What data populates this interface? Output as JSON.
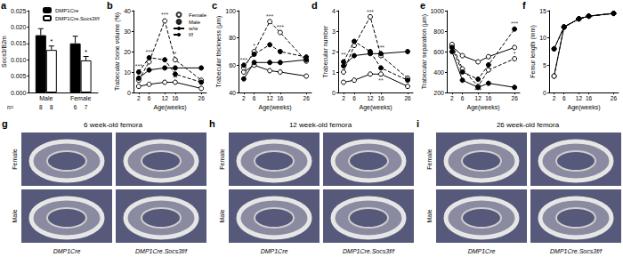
{
  "chart_data": [
    {
      "panel": "a",
      "type": "bar",
      "y_label": "Socs3/B2m",
      "categories": [
        "Male",
        "Female"
      ],
      "n_label": "n=",
      "legend": "upper right",
      "ylim": [
        0,
        0.025
      ],
      "yticks": [
        {
          "value": 0,
          "label": "0.000"
        },
        0.005,
        {
          "value": 0.01,
          "label": "0.010"
        },
        0.015,
        {
          "value": 0.02,
          "label": "0.020"
        },
        0.025
      ],
      "series": [
        {
          "name": "DMP1Cre",
          "color": "#000000",
          "values": [
            0.0175,
            0.015
          ],
          "errors": [
            0.002,
            0.0022
          ],
          "n": [
            8,
            6
          ]
        },
        {
          "name": "DMP1Cre.Socs3f/f",
          "color": "#ffffff",
          "values": [
            0.013,
            0.0098
          ],
          "errors": [
            0.0012,
            0.0012
          ],
          "n": [
            8,
            7
          ],
          "significance": [
            "*",
            "*"
          ]
        }
      ]
    },
    {
      "panel": "b",
      "type": "line",
      "y_label": "Trabecular bone volume (%)",
      "x_label": "Age(weeks)",
      "x": [
        2,
        6,
        12,
        16,
        26
      ],
      "xlim": [
        0,
        28
      ],
      "xticks": [
        2,
        6,
        12,
        16,
        26
      ],
      "ylim": [
        0,
        40
      ],
      "yticks": [
        0,
        10,
        20,
        30,
        40
      ],
      "legend": "upper right",
      "legend_entries": [
        {
          "label": "Female",
          "marker": "open-circle"
        },
        {
          "label": "Male",
          "marker": "circle"
        },
        {
          "label": "w/w",
          "line_style": "solid"
        },
        {
          "label": "f/f",
          "line_style": "dashed"
        }
      ],
      "series": [
        {
          "sex": "Female",
          "genotype": "w/w",
          "color": "#000000",
          "marker": "open-circle",
          "line_style": "solid",
          "values": [
            3,
            4,
            5,
            5,
            2
          ]
        },
        {
          "sex": "Female",
          "genotype": "f/f",
          "color": "#000000",
          "marker": "open-circle",
          "line_style": "dashed",
          "values": [
            6,
            15,
            35,
            16,
            6
          ]
        },
        {
          "sex": "Male",
          "genotype": "w/w",
          "color": "#000000",
          "marker": "circle",
          "line_style": "solid",
          "values": [
            7,
            11,
            12,
            12,
            12
          ]
        },
        {
          "sex": "Male",
          "genotype": "f/f",
          "color": "#000000",
          "marker": "circle",
          "line_style": "dashed",
          "values": [
            10,
            17,
            16,
            9,
            5
          ]
        }
      ],
      "annotations": [
        {
          "x": 2,
          "y": 13,
          "text": "***"
        },
        {
          "x": 6,
          "y": 20,
          "text": "***"
        },
        {
          "x": 12,
          "y": 38,
          "text": "***"
        },
        {
          "x": 16,
          "y": 19,
          "text": "*"
        },
        {
          "x": 16,
          "y": 7,
          "text": "**"
        }
      ]
    },
    {
      "panel": "c",
      "type": "line",
      "y_label": "Trabecular thickness (μm)",
      "x_label": "Age(weeks)",
      "x": [
        2,
        6,
        12,
        16,
        26
      ],
      "xlim": [
        0,
        28
      ],
      "xticks": [
        2,
        6,
        12,
        16,
        26
      ],
      "ylim": [
        40,
        100
      ],
      "yticks": [
        40,
        60,
        80,
        100
      ],
      "series": [
        {
          "sex": "Female",
          "genotype": "w/w",
          "color": "#000000",
          "marker": "open-circle",
          "line_style": "solid",
          "values": [
            55,
            60,
            56,
            55,
            52
          ]
        },
        {
          "sex": "Female",
          "genotype": "f/f",
          "color": "#000000",
          "marker": "open-circle",
          "line_style": "dashed",
          "values": [
            58,
            70,
            92,
            84,
            63
          ]
        },
        {
          "sex": "Male",
          "genotype": "w/w",
          "color": "#000000",
          "marker": "circle",
          "line_style": "solid",
          "values": [
            50,
            62,
            62,
            62,
            64
          ]
        },
        {
          "sex": "Male",
          "genotype": "f/f",
          "color": "#000000",
          "marker": "circle",
          "line_style": "dashed",
          "values": [
            60,
            68,
            75,
            70,
            66
          ]
        }
      ],
      "annotations": [
        {
          "x": 2,
          "y": 64,
          "text": "***"
        },
        {
          "x": 6,
          "y": 74,
          "text": "*"
        },
        {
          "x": 12,
          "y": 96,
          "text": "***"
        },
        {
          "x": 16,
          "y": 88,
          "text": "***"
        }
      ]
    },
    {
      "panel": "d",
      "type": "line",
      "y_label": "Trabecular number",
      "x_label": "Age(weeks)",
      "x": [
        2,
        6,
        12,
        16,
        26
      ],
      "xlim": [
        0,
        28
      ],
      "xticks": [
        2,
        6,
        12,
        16,
        26
      ],
      "ylim": [
        0,
        4
      ],
      "yticks": [
        0,
        1,
        2,
        3,
        4
      ],
      "series": [
        {
          "sex": "Female",
          "genotype": "w/w",
          "color": "#000000",
          "marker": "open-circle",
          "line_style": "solid",
          "values": [
            0.5,
            0.6,
            0.9,
            0.9,
            0.3
          ]
        },
        {
          "sex": "Female",
          "genotype": "f/f",
          "color": "#000000",
          "marker": "open-circle",
          "line_style": "dashed",
          "values": [
            1.0,
            2.3,
            3.7,
            1.8,
            0.7
          ]
        },
        {
          "sex": "Male",
          "genotype": "w/w",
          "color": "#000000",
          "marker": "circle",
          "line_style": "solid",
          "values": [
            1.3,
            1.8,
            1.9,
            1.9,
            2.0
          ]
        },
        {
          "sex": "Male",
          "genotype": "f/f",
          "color": "#000000",
          "marker": "circle",
          "line_style": "dashed",
          "values": [
            1.5,
            2.5,
            2.0,
            1.2,
            0.6
          ]
        }
      ],
      "annotations": [
        {
          "x": 2,
          "y": 1.85,
          "text": "**"
        },
        {
          "x": 12,
          "y": 3.95,
          "text": "***"
        },
        {
          "x": 16,
          "y": 2.2,
          "text": "***"
        },
        {
          "x": 16,
          "y": 0.6,
          "text": "**"
        }
      ]
    },
    {
      "panel": "e",
      "type": "line",
      "y_label": "Trabecular separation (μm)",
      "x_label": "Age(weeks)",
      "x": [
        2,
        6,
        12,
        16,
        26
      ],
      "xlim": [
        0,
        28
      ],
      "xticks": [
        2,
        6,
        12,
        16,
        26
      ],
      "ylim": [
        200,
        1000
      ],
      "yticks": [
        200,
        400,
        600,
        800,
        1000
      ],
      "series": [
        {
          "sex": "Female",
          "genotype": "w/w",
          "color": "#000000",
          "marker": "open-circle",
          "line_style": "solid",
          "values": [
            650,
            560,
            500,
            550,
            640
          ]
        },
        {
          "sex": "Female",
          "genotype": "f/f",
          "color": "#000000",
          "marker": "open-circle",
          "line_style": "dashed",
          "values": [
            670,
            430,
            260,
            420,
            530
          ]
        },
        {
          "sex": "Male",
          "genotype": "w/w",
          "color": "#000000",
          "marker": "circle",
          "line_style": "solid",
          "values": [
            600,
            320,
            250,
            290,
            250
          ]
        },
        {
          "sex": "Male",
          "genotype": "f/f",
          "color": "#000000",
          "marker": "circle",
          "line_style": "dashed",
          "values": [
            640,
            400,
            330,
            470,
            820
          ]
        }
      ],
      "annotations": [
        {
          "x": 12,
          "y": 225,
          "text": "***"
        },
        {
          "x": 16,
          "y": 530,
          "text": "**"
        },
        {
          "x": 26,
          "y": 870,
          "text": "***"
        },
        {
          "x": 26,
          "y": 580,
          "text": "*"
        }
      ]
    },
    {
      "panel": "f",
      "type": "line",
      "y_label": "Femur length (mm)",
      "x_label": "Age(weeks)",
      "x": [
        2,
        6,
        12,
        16,
        26
      ],
      "xlim": [
        0,
        28
      ],
      "xticks": [
        2,
        6,
        12,
        16,
        26
      ],
      "ylim": [
        0,
        15
      ],
      "yticks": [
        0,
        5,
        10,
        15
      ],
      "series": [
        {
          "sex": "Female",
          "genotype": "w/w",
          "color": "#000000",
          "marker": "open-circle",
          "line_style": "solid",
          "values": [
            3,
            12,
            13.5,
            14,
            14.5
          ]
        },
        {
          "sex": "Female",
          "genotype": "f/f",
          "color": "#000000",
          "marker": "open-circle",
          "line_style": "dashed",
          "values": [
            3,
            12,
            13.5,
            14,
            14.5
          ]
        },
        {
          "sex": "Male",
          "genotype": "w/w",
          "color": "#000000",
          "marker": "circle",
          "line_style": "solid",
          "values": [
            8,
            12,
            13.5,
            14,
            14.5
          ]
        },
        {
          "sex": "Male",
          "genotype": "f/f",
          "color": "#000000",
          "marker": "circle",
          "line_style": "dashed",
          "values": [
            8,
            12,
            13.5,
            14,
            14.5
          ]
        }
      ]
    }
  ],
  "images": [
    {
      "panel": "g",
      "title": "6 week-old femora",
      "rows": [
        "Female",
        "Male"
      ],
      "columns": [
        "DMP1Cre",
        "DMP1Cre.Socs3f/f"
      ]
    },
    {
      "panel": "h",
      "title": "12 week-old femora",
      "rows": [
        "Female",
        "Male"
      ],
      "columns": [
        "DMP1Cre",
        "DMP1Cre.Socs3f/f"
      ]
    },
    {
      "panel": "i",
      "title": "26 week-old femora",
      "rows": [
        "Female",
        "Male"
      ],
      "columns": [
        "DMP1Cre",
        "DMP1Cre.Socs3f/f"
      ]
    }
  ]
}
